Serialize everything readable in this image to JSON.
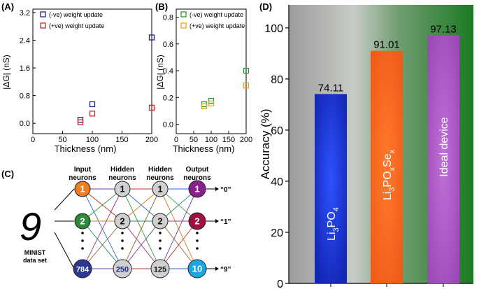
{
  "chart_data": [
    {
      "panel": "(A)",
      "type": "scatter",
      "xlabel": "Thickness (nm)",
      "ylabel": "|ΔG| (nS)",
      "xlim": [
        0,
        200
      ],
      "ylim": [
        -0.3,
        3.3
      ],
      "xticks": [
        0,
        50,
        100,
        150,
        200
      ],
      "yticks": [
        0.0,
        0.8,
        1.6,
        2.4,
        3.2
      ],
      "ytick_labels": [
        "0.0",
        "0.8",
        "1.6",
        "2.4",
        "3.2"
      ],
      "series": [
        {
          "name": "(-ve) weight update",
          "color": "#1f1f8f",
          "x": [
            80,
            100,
            200
          ],
          "y": [
            0.1,
            0.55,
            2.48
          ]
        },
        {
          "name": "(+ve) weight update",
          "color": "#d42626",
          "x": [
            80,
            100,
            200
          ],
          "y": [
            0.03,
            0.28,
            0.45
          ]
        }
      ]
    },
    {
      "panel": "(B)",
      "type": "scatter",
      "xlabel": "Thickness (nm)",
      "ylabel": "|ΔG| (nS)",
      "xlim": [
        0,
        200
      ],
      "ylim": [
        -0.07,
        0.86
      ],
      "xticks": [
        0,
        50,
        100,
        150,
        200
      ],
      "yticks": [
        0.0,
        0.2,
        0.4,
        0.6,
        0.8
      ],
      "ytick_labels": [
        "0.0",
        "0.2",
        "0.4",
        "0.6",
        "0.8"
      ],
      "series": [
        {
          "name": "(-ve) weight update",
          "color": "#2a9a2a",
          "x": [
            80,
            100,
            200
          ],
          "y": [
            0.15,
            0.175,
            0.4
          ]
        },
        {
          "name": "(+ve) weight update",
          "color": "#f0a020",
          "x": [
            80,
            100,
            200
          ],
          "y": [
            0.135,
            0.155,
            0.29
          ]
        }
      ]
    },
    {
      "panel": "(D)",
      "type": "bar",
      "ylabel": "Accuracy (%)",
      "ylim": [
        0,
        109
      ],
      "yticks": [
        0,
        20,
        40,
        60,
        80,
        100
      ],
      "categories": [
        "Li3PO4",
        "Li3POxSex",
        "Ideal device"
      ],
      "values": [
        74.11,
        91.01,
        97.13
      ],
      "value_labels": [
        "74.11",
        "91.01",
        "97.13"
      ],
      "colors": [
        "#1a2fd6",
        "#ff6a22",
        "#b05ac8"
      ]
    }
  ],
  "diagram": {
    "panel": "(C)",
    "column_headers": [
      [
        "Input",
        "neurons"
      ],
      [
        "Hidden",
        "neurons"
      ],
      [
        "Hidden",
        "neurons"
      ],
      [
        "Output",
        "neurons"
      ]
    ],
    "layers": [
      {
        "nodes": [
          "1",
          "2",
          "784"
        ],
        "colors": [
          "#f07d20",
          "#2a8a3a",
          "#2c3990"
        ]
      },
      {
        "nodes": [
          "1",
          "2",
          "250"
        ],
        "colors": [
          "#d0d0d0",
          "#d0d0d0",
          "#d0d0d0"
        ]
      },
      {
        "nodes": [
          "1",
          "2",
          "125"
        ],
        "colors": [
          "#d0d0d0",
          "#d0d0d0",
          "#d0d0d0"
        ]
      },
      {
        "nodes": [
          "1",
          "2",
          "10"
        ],
        "colors": [
          "#8a1e8c",
          "#a01040",
          "#1aa6e0"
        ]
      }
    ],
    "outputs": [
      "“0”",
      "“1”",
      "“9”"
    ],
    "digit": "9",
    "dataset_label": [
      "MINIST",
      "data set"
    ],
    "dots": "•"
  }
}
